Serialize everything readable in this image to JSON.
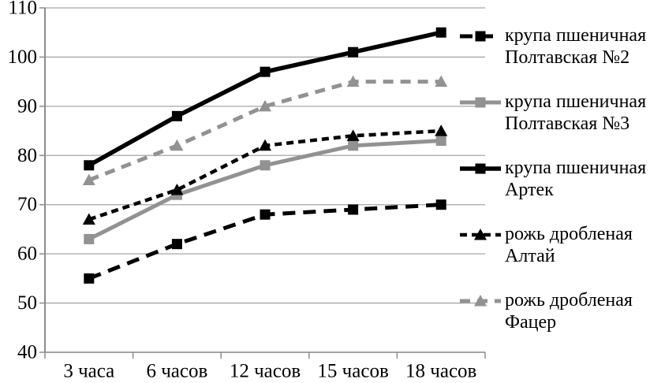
{
  "chart_data": {
    "type": "line",
    "categories": [
      "3 часа",
      "6 часов",
      "12 часов",
      "15 часов",
      "18 часов"
    ],
    "xlabel": "",
    "ylabel": "",
    "title": "",
    "ylim": [
      40,
      110
    ],
    "y_ticks": [
      40,
      50,
      60,
      70,
      80,
      90,
      100,
      110
    ],
    "grid": true,
    "legend_position": "right",
    "series": [
      {
        "name": "крупа пшеничная Полтавская №2",
        "legend_line1": "крупа пшеничная",
        "legend_line2": "Полтавская №2",
        "values": [
          55,
          62,
          68,
          69,
          70
        ],
        "color": "#000000",
        "line_style": "dashed",
        "dash": "16 10",
        "line_width": 5,
        "marker": "square"
      },
      {
        "name": "крупа пшеничная Полтавская №3",
        "legend_line1": "крупа пшеничная",
        "legend_line2": "Полтавская №3",
        "values": [
          63,
          72,
          78,
          82,
          83
        ],
        "color": "#929292",
        "line_style": "solid",
        "dash": "",
        "line_width": 5,
        "marker": "square"
      },
      {
        "name": "крупа пшеничная Артек",
        "legend_line1": "крупа пшеничная",
        "legend_line2": "Артек",
        "values": [
          78,
          88,
          97,
          101,
          105
        ],
        "color": "#000000",
        "line_style": "solid",
        "dash": "",
        "line_width": 5.5,
        "marker": "square"
      },
      {
        "name": "рожь дробленая Алтай",
        "legend_line1": "рожь дробленая",
        "legend_line2": "Алтай",
        "values": [
          67,
          73,
          82,
          84,
          85
        ],
        "color": "#000000",
        "line_style": "dashed",
        "dash": "9 6",
        "line_width": 4.5,
        "marker": "triangle"
      },
      {
        "name": "рожь дробленая Фацер",
        "legend_line1": "рожь дробленая",
        "legend_line2": "Фацер",
        "values": [
          75,
          82,
          90,
          95,
          95
        ],
        "color": "#929292",
        "line_style": "dashed",
        "dash": "13 9",
        "line_width": 5,
        "marker": "triangle"
      }
    ],
    "colors": {
      "background": "#ffffff",
      "gridline": "#a6a6a6",
      "axis": "#8c8c8c",
      "text": "#000000"
    }
  }
}
